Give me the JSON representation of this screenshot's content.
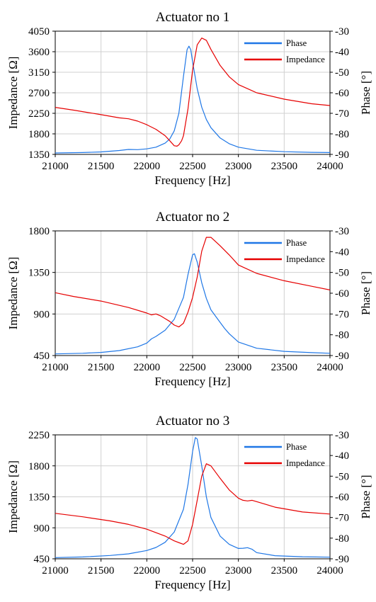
{
  "chart_data": [
    {
      "type": "line",
      "title": "Actuator no 1",
      "xlabel": "Frequency [Hz]",
      "ylabel": "Impedance [Ω]",
      "y2label": "Phase [°]",
      "xlim": [
        21000,
        24000
      ],
      "ylim": [
        1350,
        4050
      ],
      "y2lim": [
        -90,
        -30
      ],
      "xticks": [
        21000,
        21500,
        22000,
        22500,
        23000,
        23500,
        24000
      ],
      "yticks": [
        1350,
        1800,
        2250,
        2700,
        3150,
        3600,
        4050
      ],
      "y2ticks": [
        -90,
        -80,
        -70,
        -60,
        -50,
        -40,
        -30
      ],
      "grid": true,
      "legend": "top-right",
      "series": [
        {
          "name": "Phase",
          "axis": "right",
          "color": "#1f77e6",
          "points": [
            [
              21000,
              -89.3
            ],
            [
              21300,
              -89.1
            ],
            [
              21500,
              -88.8
            ],
            [
              21700,
              -88.1
            ],
            [
              21800,
              -87.6
            ],
            [
              21900,
              -87.7
            ],
            [
              22000,
              -87.3
            ],
            [
              22100,
              -86.5
            ],
            [
              22200,
              -84.5
            ],
            [
              22250,
              -82.5
            ],
            [
              22300,
              -78.5
            ],
            [
              22350,
              -70
            ],
            [
              22400,
              -52
            ],
            [
              22440,
              -39
            ],
            [
              22460,
              -37.3
            ],
            [
              22480,
              -39
            ],
            [
              22500,
              -45
            ],
            [
              22550,
              -58
            ],
            [
              22600,
              -67
            ],
            [
              22650,
              -73
            ],
            [
              22700,
              -77
            ],
            [
              22800,
              -82
            ],
            [
              22900,
              -84.8
            ],
            [
              23000,
              -86.5
            ],
            [
              23200,
              -88
            ],
            [
              23500,
              -88.7
            ],
            [
              23800,
              -89
            ],
            [
              24000,
              -89.1
            ]
          ]
        },
        {
          "name": "Impedance",
          "axis": "left",
          "color": "#e60000",
          "points": [
            [
              21000,
              2380
            ],
            [
              21200,
              2320
            ],
            [
              21500,
              2220
            ],
            [
              21700,
              2150
            ],
            [
              21800,
              2130
            ],
            [
              21900,
              2080
            ],
            [
              22000,
              2000
            ],
            [
              22100,
              1900
            ],
            [
              22200,
              1760
            ],
            [
              22250,
              1650
            ],
            [
              22300,
              1540
            ],
            [
              22330,
              1530
            ],
            [
              22350,
              1560
            ],
            [
              22380,
              1650
            ],
            [
              22400,
              1760
            ],
            [
              22450,
              2350
            ],
            [
              22500,
              3200
            ],
            [
              22550,
              3750
            ],
            [
              22600,
              3900
            ],
            [
              22650,
              3850
            ],
            [
              22700,
              3650
            ],
            [
              22800,
              3300
            ],
            [
              22900,
              3050
            ],
            [
              23000,
              2880
            ],
            [
              23200,
              2700
            ],
            [
              23500,
              2560
            ],
            [
              23800,
              2460
            ],
            [
              24000,
              2420
            ]
          ]
        }
      ]
    },
    {
      "type": "line",
      "title": "Actuator no 2",
      "xlabel": "Frequency [Hz]",
      "ylabel": "Impedance [Ω]",
      "y2label": "Phase [°]",
      "xlim": [
        21000,
        24000
      ],
      "ylim": [
        450,
        1800
      ],
      "y2lim": [
        -90,
        -30
      ],
      "xticks": [
        21000,
        21500,
        22000,
        22500,
        23000,
        23500,
        24000
      ],
      "yticks": [
        450,
        900,
        1350,
        1800
      ],
      "y2ticks": [
        -90,
        -80,
        -70,
        -60,
        -50,
        -40,
        -30
      ],
      "grid": true,
      "legend": "top-right",
      "series": [
        {
          "name": "Phase",
          "axis": "right",
          "color": "#1f77e6",
          "points": [
            [
              21000,
              -89.2
            ],
            [
              21300,
              -88.9
            ],
            [
              21500,
              -88.5
            ],
            [
              21700,
              -87.6
            ],
            [
              21900,
              -85.8
            ],
            [
              22000,
              -84
            ],
            [
              22050,
              -82
            ],
            [
              22100,
              -80.8
            ],
            [
              22200,
              -77.8
            ],
            [
              22300,
              -72.5
            ],
            [
              22400,
              -62
            ],
            [
              22450,
              -51
            ],
            [
              22500,
              -41.5
            ],
            [
              22520,
              -41
            ],
            [
              22550,
              -45
            ],
            [
              22600,
              -55
            ],
            [
              22650,
              -62.5
            ],
            [
              22700,
              -68
            ],
            [
              22800,
              -74
            ],
            [
              22850,
              -77
            ],
            [
              22900,
              -79.5
            ],
            [
              23000,
              -83.5
            ],
            [
              23200,
              -86.5
            ],
            [
              23500,
              -88
            ],
            [
              23800,
              -88.6
            ],
            [
              24000,
              -88.9
            ]
          ]
        },
        {
          "name": "Impedance",
          "axis": "left",
          "color": "#e60000",
          "points": [
            [
              21000,
              1130
            ],
            [
              21200,
              1090
            ],
            [
              21500,
              1040
            ],
            [
              21800,
              970
            ],
            [
              22000,
              910
            ],
            [
              22050,
              890
            ],
            [
              22100,
              900
            ],
            [
              22150,
              880
            ],
            [
              22200,
              850
            ],
            [
              22250,
              820
            ],
            [
              22300,
              780
            ],
            [
              22350,
              760
            ],
            [
              22400,
              800
            ],
            [
              22450,
              920
            ],
            [
              22500,
              1080
            ],
            [
              22550,
              1300
            ],
            [
              22600,
              1580
            ],
            [
              22650,
              1730
            ],
            [
              22700,
              1730
            ],
            [
              22800,
              1640
            ],
            [
              22900,
              1540
            ],
            [
              23000,
              1430
            ],
            [
              23200,
              1340
            ],
            [
              23500,
              1260
            ],
            [
              23800,
              1200
            ],
            [
              24000,
              1160
            ]
          ]
        }
      ]
    },
    {
      "type": "line",
      "title": "Actuator no 3",
      "xlabel": "Frequency [Hz]",
      "ylabel": "Impedance [Ω]",
      "y2label": "Phase [°]",
      "xlim": [
        21000,
        24000
      ],
      "ylim": [
        450,
        2250
      ],
      "y2lim": [
        -90,
        -30
      ],
      "xticks": [
        21000,
        21500,
        22000,
        22500,
        23000,
        23500,
        24000
      ],
      "yticks": [
        450,
        900,
        1350,
        1800,
        2250
      ],
      "y2ticks": [
        -90,
        -80,
        -70,
        -60,
        -50,
        -40,
        -30
      ],
      "grid": true,
      "legend": "top-right",
      "series": [
        {
          "name": "Phase",
          "axis": "right",
          "color": "#1f77e6",
          "points": [
            [
              21000,
              -89.4
            ],
            [
              21300,
              -89.1
            ],
            [
              21600,
              -88.4
            ],
            [
              21800,
              -87.6
            ],
            [
              22000,
              -86
            ],
            [
              22100,
              -84.5
            ],
            [
              22200,
              -82
            ],
            [
              22300,
              -77
            ],
            [
              22400,
              -66
            ],
            [
              22450,
              -54
            ],
            [
              22500,
              -38
            ],
            [
              22530,
              -31.3
            ],
            [
              22550,
              -32
            ],
            [
              22600,
              -45
            ],
            [
              22650,
              -60
            ],
            [
              22700,
              -70
            ],
            [
              22800,
              -79
            ],
            [
              22900,
              -83
            ],
            [
              23000,
              -85
            ],
            [
              23050,
              -84.9
            ],
            [
              23100,
              -84.6
            ],
            [
              23150,
              -85.4
            ],
            [
              23200,
              -87
            ],
            [
              23400,
              -88.5
            ],
            [
              23700,
              -89
            ],
            [
              24000,
              -89.2
            ]
          ]
        },
        {
          "name": "Impedance",
          "axis": "left",
          "color": "#e60000",
          "points": [
            [
              21000,
              1110
            ],
            [
              21300,
              1060
            ],
            [
              21600,
              1000
            ],
            [
              21800,
              950
            ],
            [
              22000,
              880
            ],
            [
              22200,
              780
            ],
            [
              22300,
              710
            ],
            [
              22400,
              660
            ],
            [
              22450,
              710
            ],
            [
              22500,
              950
            ],
            [
              22550,
              1300
            ],
            [
              22600,
              1650
            ],
            [
              22650,
              1830
            ],
            [
              22700,
              1800
            ],
            [
              22800,
              1620
            ],
            [
              22900,
              1450
            ],
            [
              23000,
              1330
            ],
            [
              23050,
              1300
            ],
            [
              23100,
              1290
            ],
            [
              23150,
              1300
            ],
            [
              23200,
              1280
            ],
            [
              23400,
              1200
            ],
            [
              23700,
              1130
            ],
            [
              24000,
              1100
            ]
          ]
        }
      ]
    }
  ]
}
